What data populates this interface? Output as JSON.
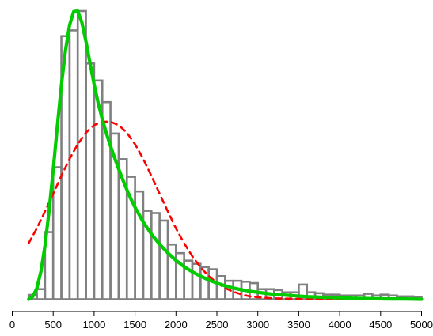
{
  "chart_data": {
    "type": "bar",
    "title": "",
    "xlabel": "",
    "ylabel": "",
    "grid": false,
    "legend": "none",
    "xlim": [
      200,
      5000
    ],
    "bin_width": 100,
    "x_ticks": [
      0,
      500,
      1000,
      1500,
      2000,
      2500,
      3000,
      3500,
      4000,
      4500,
      5000
    ],
    "x_tick_labels": [
      "0",
      "500",
      "1000",
      "1500",
      "2000",
      "2500",
      "3000",
      "3500",
      "4000",
      "4500",
      "5000"
    ],
    "histogram": {
      "bin_edges": [
        200,
        300,
        400,
        500,
        600,
        700,
        800,
        900,
        1000,
        1100,
        1200,
        1300,
        1400,
        1500,
        1600,
        1700,
        1800,
        1900,
        2000,
        2100,
        2200,
        2300,
        2400,
        2500,
        2600,
        2700,
        2800,
        2900,
        3000,
        3100,
        3200,
        3300,
        3400,
        3500,
        3600,
        3700,
        3800,
        3900,
        4000,
        4100,
        4200,
        4300,
        4400,
        4500,
        4600,
        4700,
        4800,
        4900,
        5000
      ],
      "heights": [
        1.5,
        3.5,
        23.3,
        45.8,
        91.3,
        93.3,
        100,
        81.8,
        75.9,
        68.4,
        57.5,
        48.6,
        42.5,
        37.4,
        30.7,
        29.9,
        27.3,
        19.0,
        16.0,
        13.4,
        12.3,
        11.2,
        10.4,
        8.0,
        6.4,
        6.4,
        6.1,
        5.6,
        3.5,
        3.5,
        3.2,
        2.4,
        2.4,
        5.1,
        2.4,
        2.1,
        1.6,
        1.6,
        1.3,
        1.3,
        1.3,
        1.9,
        1.3,
        1.6,
        1.3,
        1.0,
        1.0,
        0.8
      ],
      "color": "#808080"
    },
    "curves": [
      {
        "style": "solid",
        "color": "#00cc00",
        "x": [
          200,
          250,
          300,
          350,
          400,
          450,
          500,
          550,
          600,
          650,
          700,
          750,
          800,
          850,
          900,
          950,
          1000,
          1050,
          1100,
          1150,
          1200,
          1250,
          1300,
          1350,
          1400,
          1450,
          1500,
          1600,
          1700,
          1800,
          1900,
          2000,
          2100,
          2200,
          2300,
          2400,
          2500,
          2600,
          2700,
          2800,
          2900,
          3000,
          3200,
          3400,
          3600,
          3800,
          4000,
          4200,
          4400,
          4600,
          4800,
          5000
        ],
        "y": [
          0,
          0.9,
          3.8,
          9.6,
          18.6,
          30.7,
          44.8,
          59.9,
          74.2,
          86.3,
          95.1,
          99.8,
          100,
          96.1,
          89.5,
          82.0,
          74.6,
          68.0,
          62.5,
          57.6,
          53.2,
          49.1,
          45.2,
          41.5,
          38.0,
          34.8,
          31.9,
          26.8,
          22.6,
          19.1,
          16.1,
          13.5,
          11.3,
          9.5,
          8.0,
          6.7,
          5.6,
          4.7,
          3.9,
          3.3,
          2.8,
          2.4,
          1.7,
          1.3,
          0.9,
          0.7,
          0.5,
          0.3,
          0.2,
          0.1,
          0.1,
          0.0
        ]
      },
      {
        "style": "dashed",
        "color": "#ff0000",
        "x": [
          200,
          300,
          400,
          500,
          600,
          700,
          800,
          900,
          1000,
          1100,
          1200,
          1300,
          1400,
          1500,
          1600,
          1700,
          1800,
          1900,
          2000,
          2100,
          2200,
          2300,
          2400,
          2500,
          2600,
          2700,
          2800,
          2900,
          3000,
          3100,
          3200,
          3400,
          3600,
          3800,
          4000,
          4200,
          4400,
          4600,
          4800,
          5000
        ],
        "y": [
          19.4,
          24.6,
          30.5,
          36.6,
          42.8,
          48.7,
          53.8,
          57.8,
          60.4,
          61.6,
          61.6,
          60.4,
          57.8,
          53.8,
          48.7,
          42.8,
          36.6,
          30.5,
          24.6,
          19.4,
          14.9,
          11.1,
          8.0,
          5.7,
          3.9,
          2.6,
          1.7,
          1.0,
          0.7,
          0.5,
          0.3,
          0.2,
          0.1,
          0.1,
          0.0,
          0.0,
          0.0,
          0.0,
          0.0,
          0.0
        ]
      }
    ]
  }
}
